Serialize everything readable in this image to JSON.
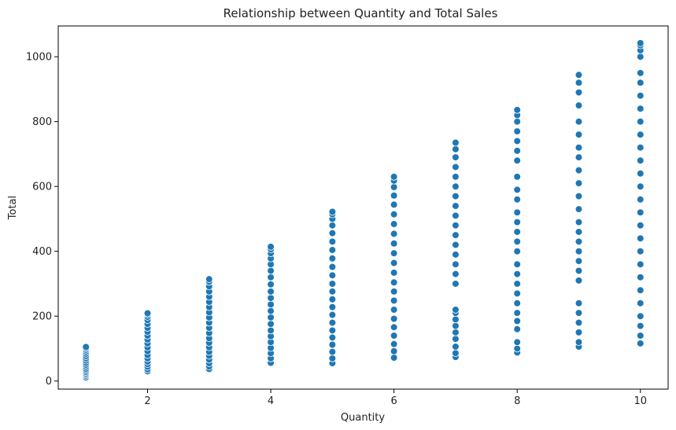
{
  "chart_data": {
    "type": "scatter",
    "title": "Relationship between Quantity and Total Sales",
    "xlabel": "Quantity",
    "ylabel": "Total",
    "xlim": [
      0.55,
      10.45
    ],
    "ylim": [
      -25,
      1095
    ],
    "xticks": [
      2,
      4,
      6,
      8,
      10
    ],
    "yticks": [
      0,
      200,
      400,
      600,
      800,
      1000
    ],
    "grid": false,
    "marker_color": "#1f77b4",
    "series": [
      {
        "points": [
          [
            1,
            11
          ],
          [
            1,
            16
          ],
          [
            1,
            20
          ],
          [
            1,
            24
          ],
          [
            1,
            28
          ],
          [
            1,
            33
          ],
          [
            1,
            38
          ],
          [
            1,
            44
          ],
          [
            1,
            50
          ],
          [
            1,
            56
          ],
          [
            1,
            63
          ],
          [
            1,
            70
          ],
          [
            1,
            77
          ],
          [
            1,
            84
          ],
          [
            1,
            90
          ],
          [
            1,
            96
          ],
          [
            1,
            101
          ],
          [
            1,
            105
          ],
          [
            2,
            30
          ],
          [
            2,
            36
          ],
          [
            2,
            44
          ],
          [
            2,
            52
          ],
          [
            2,
            60
          ],
          [
            2,
            70
          ],
          [
            2,
            80
          ],
          [
            2,
            92
          ],
          [
            2,
            104
          ],
          [
            2,
            116
          ],
          [
            2,
            128
          ],
          [
            2,
            140
          ],
          [
            2,
            152
          ],
          [
            2,
            164
          ],
          [
            2,
            176
          ],
          [
            2,
            188
          ],
          [
            2,
            198
          ],
          [
            2,
            205
          ],
          [
            2,
            209
          ],
          [
            3,
            37
          ],
          [
            3,
            45
          ],
          [
            3,
            55
          ],
          [
            3,
            66
          ],
          [
            3,
            78
          ],
          [
            3,
            90
          ],
          [
            3,
            104
          ],
          [
            3,
            118
          ],
          [
            3,
            132
          ],
          [
            3,
            148
          ],
          [
            3,
            164
          ],
          [
            3,
            180
          ],
          [
            3,
            196
          ],
          [
            3,
            212
          ],
          [
            3,
            228
          ],
          [
            3,
            244
          ],
          [
            3,
            260
          ],
          [
            3,
            276
          ],
          [
            3,
            292
          ],
          [
            3,
            306
          ],
          [
            3,
            314
          ],
          [
            4,
            56
          ],
          [
            4,
            70
          ],
          [
            4,
            86
          ],
          [
            4,
            102
          ],
          [
            4,
            120
          ],
          [
            4,
            138
          ],
          [
            4,
            156
          ],
          [
            4,
            176
          ],
          [
            4,
            196
          ],
          [
            4,
            216
          ],
          [
            4,
            236
          ],
          [
            4,
            256
          ],
          [
            4,
            276
          ],
          [
            4,
            298
          ],
          [
            4,
            320
          ],
          [
            4,
            340
          ],
          [
            4,
            360
          ],
          [
            4,
            378
          ],
          [
            4,
            394
          ],
          [
            4,
            406
          ],
          [
            4,
            414
          ],
          [
            5,
            55
          ],
          [
            5,
            70
          ],
          [
            5,
            90
          ],
          [
            5,
            112
          ],
          [
            5,
            134
          ],
          [
            5,
            156
          ],
          [
            5,
            180
          ],
          [
            5,
            204
          ],
          [
            5,
            228
          ],
          [
            5,
            252
          ],
          [
            5,
            276
          ],
          [
            5,
            300
          ],
          [
            5,
            326
          ],
          [
            5,
            352
          ],
          [
            5,
            378
          ],
          [
            5,
            404
          ],
          [
            5,
            430
          ],
          [
            5,
            456
          ],
          [
            5,
            480
          ],
          [
            5,
            500
          ],
          [
            5,
            514
          ],
          [
            5,
            522
          ],
          [
            6,
            72
          ],
          [
            6,
            92
          ],
          [
            6,
            114
          ],
          [
            6,
            140
          ],
          [
            6,
            166
          ],
          [
            6,
            192
          ],
          [
            6,
            220
          ],
          [
            6,
            248
          ],
          [
            6,
            276
          ],
          [
            6,
            304
          ],
          [
            6,
            334
          ],
          [
            6,
            364
          ],
          [
            6,
            394
          ],
          [
            6,
            424
          ],
          [
            6,
            454
          ],
          [
            6,
            484
          ],
          [
            6,
            514
          ],
          [
            6,
            544
          ],
          [
            6,
            572
          ],
          [
            6,
            598
          ],
          [
            6,
            618
          ],
          [
            6,
            630
          ],
          [
            7,
            74
          ],
          [
            7,
            86
          ],
          [
            7,
            106
          ],
          [
            7,
            130
          ],
          [
            7,
            150
          ],
          [
            7,
            170
          ],
          [
            7,
            190
          ],
          [
            7,
            210
          ],
          [
            7,
            220
          ],
          [
            7,
            300
          ],
          [
            7,
            330
          ],
          [
            7,
            360
          ],
          [
            7,
            390
          ],
          [
            7,
            420
          ],
          [
            7,
            450
          ],
          [
            7,
            480
          ],
          [
            7,
            510
          ],
          [
            7,
            540
          ],
          [
            7,
            570
          ],
          [
            7,
            600
          ],
          [
            7,
            630
          ],
          [
            7,
            660
          ],
          [
            7,
            690
          ],
          [
            7,
            715
          ],
          [
            7,
            735
          ],
          [
            8,
            88
          ],
          [
            8,
            100
          ],
          [
            8,
            120
          ],
          [
            8,
            160
          ],
          [
            8,
            185
          ],
          [
            8,
            210
          ],
          [
            8,
            240
          ],
          [
            8,
            270
          ],
          [
            8,
            300
          ],
          [
            8,
            330
          ],
          [
            8,
            360
          ],
          [
            8,
            400
          ],
          [
            8,
            430
          ],
          [
            8,
            460
          ],
          [
            8,
            490
          ],
          [
            8,
            520
          ],
          [
            8,
            560
          ],
          [
            8,
            590
          ],
          [
            8,
            630
          ],
          [
            8,
            680
          ],
          [
            8,
            710
          ],
          [
            8,
            740
          ],
          [
            8,
            770
          ],
          [
            8,
            800
          ],
          [
            8,
            820
          ],
          [
            8,
            836
          ],
          [
            9,
            106
          ],
          [
            9,
            120
          ],
          [
            9,
            150
          ],
          [
            9,
            180
          ],
          [
            9,
            210
          ],
          [
            9,
            240
          ],
          [
            9,
            310
          ],
          [
            9,
            340
          ],
          [
            9,
            370
          ],
          [
            9,
            400
          ],
          [
            9,
            430
          ],
          [
            9,
            460
          ],
          [
            9,
            490
          ],
          [
            9,
            530
          ],
          [
            9,
            570
          ],
          [
            9,
            610
          ],
          [
            9,
            650
          ],
          [
            9,
            690
          ],
          [
            9,
            720
          ],
          [
            9,
            760
          ],
          [
            9,
            800
          ],
          [
            9,
            850
          ],
          [
            9,
            890
          ],
          [
            9,
            920
          ],
          [
            9,
            944
          ],
          [
            10,
            116
          ],
          [
            10,
            140
          ],
          [
            10,
            170
          ],
          [
            10,
            200
          ],
          [
            10,
            240
          ],
          [
            10,
            280
          ],
          [
            10,
            320
          ],
          [
            10,
            360
          ],
          [
            10,
            400
          ],
          [
            10,
            440
          ],
          [
            10,
            480
          ],
          [
            10,
            520
          ],
          [
            10,
            560
          ],
          [
            10,
            600
          ],
          [
            10,
            640
          ],
          [
            10,
            680
          ],
          [
            10,
            720
          ],
          [
            10,
            760
          ],
          [
            10,
            800
          ],
          [
            10,
            840
          ],
          [
            10,
            880
          ],
          [
            10,
            920
          ],
          [
            10,
            950
          ],
          [
            10,
            1000
          ],
          [
            10,
            1020
          ],
          [
            10,
            1035
          ],
          [
            10,
            1042
          ]
        ]
      }
    ]
  }
}
